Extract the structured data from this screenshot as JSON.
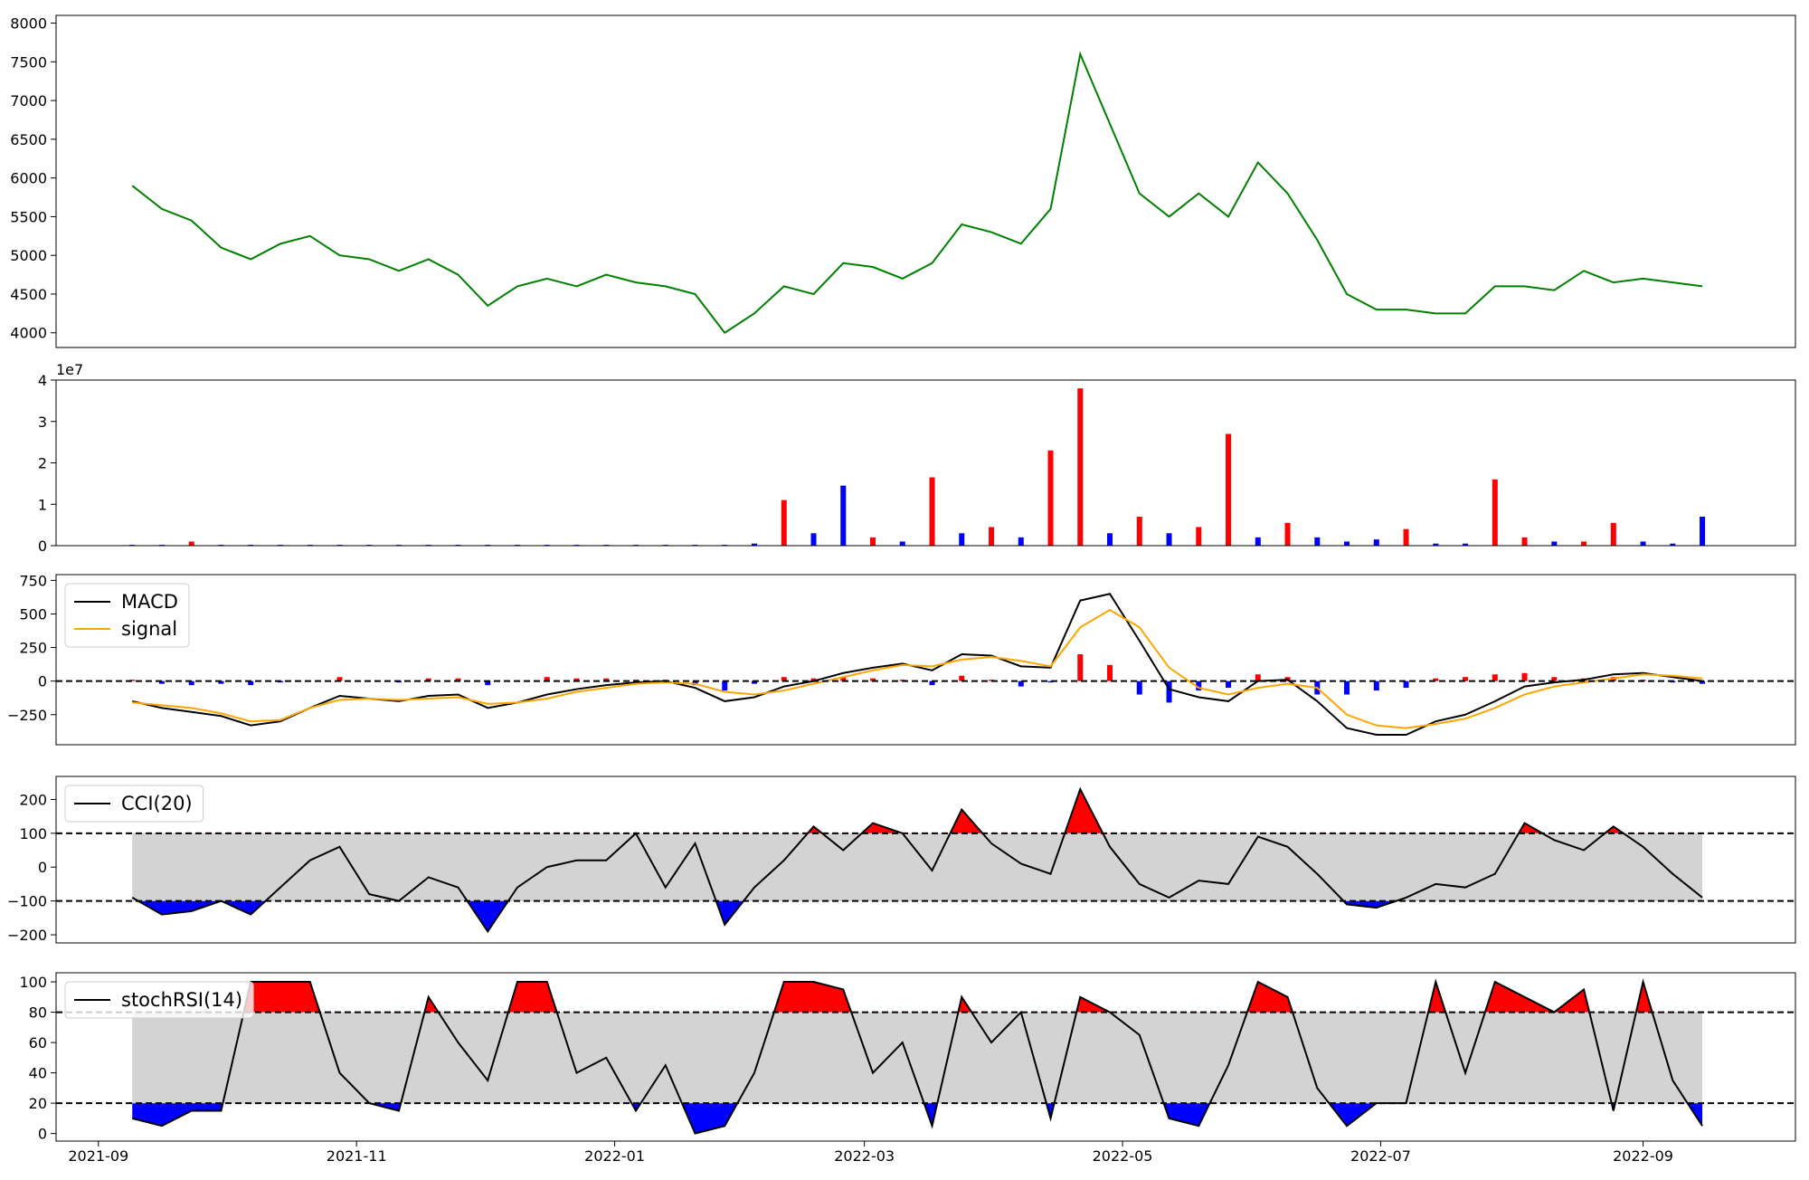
{
  "chart_data": [
    {
      "type": "line",
      "xlim": [
        "2021-08-22",
        "2022-10-07"
      ],
      "ylim": [
        3810,
        8100
      ],
      "yticks": [
        4000,
        4500,
        5000,
        5500,
        6000,
        6500,
        7000,
        7500,
        8000
      ],
      "x": [
        "2021-09-09",
        "2021-09-16",
        "2021-09-23",
        "2021-09-30",
        "2021-10-07",
        "2021-10-14",
        "2021-10-21",
        "2021-10-28",
        "2021-11-04",
        "2021-11-11",
        "2021-11-18",
        "2021-11-25",
        "2021-12-02",
        "2021-12-09",
        "2021-12-16",
        "2021-12-23",
        "2021-12-30",
        "2022-01-06",
        "2022-01-13",
        "2022-01-20",
        "2022-01-27",
        "2022-02-03",
        "2022-02-10",
        "2022-02-17",
        "2022-02-24",
        "2022-03-03",
        "2022-03-10",
        "2022-03-17",
        "2022-03-24",
        "2022-03-31",
        "2022-04-07",
        "2022-04-14",
        "2022-04-21",
        "2022-04-28",
        "2022-05-05",
        "2022-05-12",
        "2022-05-19",
        "2022-05-26",
        "2022-06-02",
        "2022-06-09",
        "2022-06-16",
        "2022-06-23",
        "2022-06-30",
        "2022-07-07",
        "2022-07-14",
        "2022-07-21",
        "2022-07-28",
        "2022-08-04",
        "2022-08-11",
        "2022-08-18",
        "2022-08-25",
        "2022-09-01",
        "2022-09-08",
        "2022-09-15"
      ],
      "series": [
        {
          "color": "#008000",
          "values": [
            5900,
            5600,
            5450,
            5100,
            4950,
            5150,
            5250,
            5000,
            4950,
            4800,
            4950,
            4750,
            4350,
            4600,
            4700,
            4600,
            4750,
            4650,
            4600,
            4500,
            4000,
            4250,
            4600,
            4500,
            4900,
            4850,
            4700,
            4900,
            5400,
            5300,
            5150,
            5600,
            7600,
            6700,
            5800,
            5500,
            5800,
            5500,
            6200,
            5800,
            5200,
            4500,
            4300,
            4300,
            4250,
            4250,
            4600,
            4600,
            4550,
            4800,
            4650,
            4700,
            4650,
            4600
          ]
        }
      ]
    },
    {
      "type": "bar",
      "xlim": [
        "2021-08-22",
        "2022-10-07"
      ],
      "ylim": [
        0,
        4
      ],
      "yticks": [
        0,
        1,
        2,
        3,
        4
      ],
      "y_offset_label": "1e7",
      "x": [
        "2021-09-09",
        "2021-09-16",
        "2021-09-23",
        "2021-09-30",
        "2021-10-07",
        "2021-10-14",
        "2021-10-21",
        "2021-10-28",
        "2021-11-04",
        "2021-11-11",
        "2021-11-18",
        "2021-11-25",
        "2021-12-02",
        "2021-12-09",
        "2021-12-16",
        "2021-12-23",
        "2021-12-30",
        "2022-01-06",
        "2022-01-13",
        "2022-01-20",
        "2022-01-27",
        "2022-02-03",
        "2022-02-10",
        "2022-02-17",
        "2022-02-24",
        "2022-03-03",
        "2022-03-10",
        "2022-03-17",
        "2022-03-24",
        "2022-03-31",
        "2022-04-07",
        "2022-04-14",
        "2022-04-21",
        "2022-04-28",
        "2022-05-05",
        "2022-05-12",
        "2022-05-19",
        "2022-05-26",
        "2022-06-02",
        "2022-06-09",
        "2022-06-16",
        "2022-06-23",
        "2022-06-30",
        "2022-07-07",
        "2022-07-14",
        "2022-07-21",
        "2022-07-28",
        "2022-08-04",
        "2022-08-11",
        "2022-08-18",
        "2022-08-25",
        "2022-09-01",
        "2022-09-08",
        "2022-09-15"
      ],
      "series": [
        {
          "values": [
            0.02,
            0.02,
            0.1,
            0.02,
            0.02,
            0.02,
            0.02,
            0.02,
            0.02,
            0.02,
            0.02,
            0.02,
            0.02,
            0.02,
            0.02,
            0.02,
            0.02,
            0.02,
            0.02,
            0.02,
            0.02,
            0.05,
            1.1,
            0.3,
            1.45,
            0.2,
            0.1,
            1.65,
            0.3,
            0.45,
            0.2,
            2.3,
            3.8,
            0.3,
            0.7,
            0.3,
            0.45,
            2.7,
            0.2,
            0.55,
            0.2,
            0.1,
            0.15,
            0.4,
            0.05,
            0.05,
            1.6,
            0.2,
            0.1,
            0.1,
            0.55,
            0.1,
            0.05,
            0.7
          ],
          "colors": [
            "#0000ff",
            "#0000ff",
            "#ff0000",
            "#0000ff",
            "#0000ff",
            "#0000ff",
            "#0000ff",
            "#0000ff",
            "#0000ff",
            "#0000ff",
            "#0000ff",
            "#0000ff",
            "#0000ff",
            "#0000ff",
            "#0000ff",
            "#0000ff",
            "#0000ff",
            "#0000ff",
            "#0000ff",
            "#0000ff",
            "#0000ff",
            "#0000ff",
            "#ff0000",
            "#0000ff",
            "#0000ff",
            "#ff0000",
            "#0000ff",
            "#ff0000",
            "#0000ff",
            "#ff0000",
            "#0000ff",
            "#ff0000",
            "#ff0000",
            "#0000ff",
            "#ff0000",
            "#0000ff",
            "#ff0000",
            "#ff0000",
            "#0000ff",
            "#ff0000",
            "#0000ff",
            "#0000ff",
            "#0000ff",
            "#ff0000",
            "#0000ff",
            "#0000ff",
            "#ff0000",
            "#ff0000",
            "#0000ff",
            "#ff0000",
            "#ff0000",
            "#0000ff",
            "#0000ff",
            "#0000ff"
          ]
        }
      ]
    },
    {
      "type": "line",
      "xlim": [
        "2021-08-22",
        "2022-10-07"
      ],
      "ylim": [
        -474,
        793
      ],
      "yticks": [
        {
          "value": -250,
          "label": "−250"
        },
        0,
        250,
        500,
        750
      ],
      "hlines": [
        0
      ],
      "legend": "upper left",
      "x": [
        "2021-09-09",
        "2021-09-16",
        "2021-09-23",
        "2021-09-30",
        "2021-10-07",
        "2021-10-14",
        "2021-10-21",
        "2021-10-28",
        "2021-11-04",
        "2021-11-11",
        "2021-11-18",
        "2021-11-25",
        "2021-12-02",
        "2021-12-09",
        "2021-12-16",
        "2021-12-23",
        "2021-12-30",
        "2022-01-06",
        "2022-01-13",
        "2022-01-20",
        "2022-01-27",
        "2022-02-03",
        "2022-02-10",
        "2022-02-17",
        "2022-02-24",
        "2022-03-03",
        "2022-03-10",
        "2022-03-17",
        "2022-03-24",
        "2022-03-31",
        "2022-04-07",
        "2022-04-14",
        "2022-04-21",
        "2022-04-28",
        "2022-05-05",
        "2022-05-12",
        "2022-05-19",
        "2022-05-26",
        "2022-06-02",
        "2022-06-09",
        "2022-06-16",
        "2022-06-23",
        "2022-06-30",
        "2022-07-07",
        "2022-07-14",
        "2022-07-21",
        "2022-07-28",
        "2022-08-04",
        "2022-08-11",
        "2022-08-18",
        "2022-08-25",
        "2022-09-01",
        "2022-09-08",
        "2022-09-15"
      ],
      "histogram": {
        "positive_color": "#ff0000",
        "negative_color": "#0000ff",
        "values": [
          10,
          -20,
          -30,
          -20,
          -30,
          -10,
          0,
          30,
          0,
          -10,
          20,
          20,
          -30,
          0,
          30,
          20,
          20,
          10,
          10,
          -30,
          -70,
          -20,
          30,
          20,
          30,
          20,
          10,
          -30,
          40,
          10,
          -40,
          -10,
          200,
          120,
          -100,
          -160,
          -70,
          -50,
          50,
          30,
          -100,
          -100,
          -70,
          -50,
          20,
          30,
          50,
          60,
          30,
          20,
          30,
          10,
          -10,
          -20
        ]
      },
      "series": [
        {
          "name": "MACD",
          "color": "#000000",
          "values": [
            -150,
            -200,
            -230,
            -260,
            -330,
            -300,
            -200,
            -110,
            -130,
            -150,
            -110,
            -100,
            -200,
            -160,
            -100,
            -60,
            -30,
            -10,
            0,
            -50,
            -150,
            -120,
            -40,
            0,
            60,
            100,
            130,
            80,
            200,
            190,
            110,
            100,
            600,
            650,
            300,
            -60,
            -120,
            -150,
            0,
            10,
            -150,
            -350,
            -400,
            -400,
            -300,
            -250,
            -150,
            -40,
            -10,
            10,
            50,
            60,
            30,
            0
          ]
        },
        {
          "name": "signal",
          "color": "#ffa500",
          "values": [
            -160,
            -180,
            -200,
            -240,
            -300,
            -290,
            -200,
            -140,
            -130,
            -140,
            -130,
            -120,
            -170,
            -160,
            -130,
            -80,
            -50,
            -20,
            -10,
            -20,
            -80,
            -100,
            -70,
            -20,
            30,
            80,
            120,
            110,
            160,
            180,
            150,
            110,
            400,
            530,
            400,
            100,
            -50,
            -100,
            -50,
            -20,
            -50,
            -250,
            -330,
            -350,
            -320,
            -280,
            -200,
            -100,
            -40,
            -10,
            20,
            50,
            40,
            20
          ]
        }
      ]
    },
    {
      "type": "line",
      "xlim": [
        "2021-08-22",
        "2022-10-07"
      ],
      "ylim": [
        -224,
        268
      ],
      "yticks": [
        {
          "value": -200,
          "label": "−200"
        },
        {
          "value": -100,
          "label": "−100"
        },
        0,
        100,
        200
      ],
      "thresholds": [
        -100,
        100
      ],
      "band_color": "#d3d3d3",
      "above_color": "#ff0000",
      "below_color": "#0000ff",
      "legend": "upper left",
      "x": [
        "2021-09-09",
        "2021-09-16",
        "2021-09-23",
        "2021-09-30",
        "2021-10-07",
        "2021-10-14",
        "2021-10-21",
        "2021-10-28",
        "2021-11-04",
        "2021-11-11",
        "2021-11-18",
        "2021-11-25",
        "2021-12-02",
        "2021-12-09",
        "2021-12-16",
        "2021-12-23",
        "2021-12-30",
        "2022-01-06",
        "2022-01-13",
        "2022-01-20",
        "2022-01-27",
        "2022-02-03",
        "2022-02-10",
        "2022-02-17",
        "2022-02-24",
        "2022-03-03",
        "2022-03-10",
        "2022-03-17",
        "2022-03-24",
        "2022-03-31",
        "2022-04-07",
        "2022-04-14",
        "2022-04-21",
        "2022-04-28",
        "2022-05-05",
        "2022-05-12",
        "2022-05-19",
        "2022-05-26",
        "2022-06-02",
        "2022-06-09",
        "2022-06-16",
        "2022-06-23",
        "2022-06-30",
        "2022-07-07",
        "2022-07-14",
        "2022-07-21",
        "2022-07-28",
        "2022-08-04",
        "2022-08-11",
        "2022-08-18",
        "2022-08-25",
        "2022-09-01",
        "2022-09-08",
        "2022-09-15"
      ],
      "series": [
        {
          "name": "CCI(20)",
          "color": "#000000",
          "values": [
            -90,
            -140,
            -130,
            -100,
            -140,
            -60,
            20,
            60,
            -80,
            -100,
            -30,
            -60,
            -190,
            -60,
            0,
            20,
            20,
            100,
            -60,
            70,
            -170,
            -60,
            20,
            120,
            50,
            130,
            100,
            -10,
            170,
            70,
            10,
            -20,
            230,
            60,
            -50,
            -90,
            -40,
            -50,
            90,
            60,
            -20,
            -110,
            -120,
            -90,
            -50,
            -60,
            -20,
            130,
            80,
            50,
            120,
            60,
            -20,
            -90
          ]
        }
      ]
    },
    {
      "type": "line",
      "xlim": [
        "2021-08-22",
        "2022-10-07"
      ],
      "ylim": [
        -5,
        106
      ],
      "yticks": [
        0,
        20,
        40,
        60,
        80,
        100
      ],
      "thresholds": [
        20,
        80
      ],
      "band_color": "#d3d3d3",
      "above_color": "#ff0000",
      "below_color": "#0000ff",
      "legend": "upper left",
      "xticks": [
        {
          "value": "2021-09-01",
          "label": "2021-09"
        },
        {
          "value": "2021-11-01",
          "label": "2021-11"
        },
        {
          "value": "2022-01-01",
          "label": "2022-01"
        },
        {
          "value": "2022-03-01",
          "label": "2022-03"
        },
        {
          "value": "2022-05-01",
          "label": "2022-05"
        },
        {
          "value": "2022-07-01",
          "label": "2022-07"
        },
        {
          "value": "2022-09-01",
          "label": "2022-09"
        }
      ],
      "x": [
        "2021-09-09",
        "2021-09-16",
        "2021-09-23",
        "2021-09-30",
        "2021-10-07",
        "2021-10-14",
        "2021-10-21",
        "2021-10-28",
        "2021-11-04",
        "2021-11-11",
        "2021-11-18",
        "2021-11-25",
        "2021-12-02",
        "2021-12-09",
        "2021-12-16",
        "2021-12-23",
        "2021-12-30",
        "2022-01-06",
        "2022-01-13",
        "2022-01-20",
        "2022-01-27",
        "2022-02-03",
        "2022-02-10",
        "2022-02-17",
        "2022-02-24",
        "2022-03-03",
        "2022-03-10",
        "2022-03-17",
        "2022-03-24",
        "2022-03-31",
        "2022-04-07",
        "2022-04-14",
        "2022-04-21",
        "2022-04-28",
        "2022-05-05",
        "2022-05-12",
        "2022-05-19",
        "2022-05-26",
        "2022-06-02",
        "2022-06-09",
        "2022-06-16",
        "2022-06-23",
        "2022-06-30",
        "2022-07-07",
        "2022-07-14",
        "2022-07-21",
        "2022-07-28",
        "2022-08-04",
        "2022-08-11",
        "2022-08-18",
        "2022-08-25",
        "2022-09-01",
        "2022-09-08",
        "2022-09-15"
      ],
      "series": [
        {
          "name": "stochRSI(14)",
          "color": "#000000",
          "values": [
            10,
            5,
            15,
            15,
            100,
            100,
            100,
            40,
            20,
            15,
            90,
            60,
            35,
            100,
            100,
            40,
            50,
            15,
            45,
            0,
            5,
            40,
            100,
            100,
            95,
            40,
            60,
            5,
            90,
            60,
            80,
            10,
            90,
            80,
            65,
            10,
            5,
            45,
            100,
            90,
            30,
            5,
            20,
            20,
            100,
            40,
            100,
            90,
            80,
            95,
            15,
            100,
            35,
            5
          ]
        }
      ]
    }
  ]
}
